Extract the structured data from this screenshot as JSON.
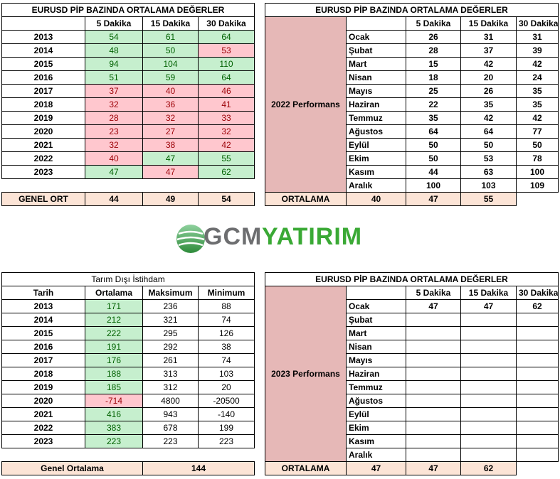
{
  "t1": {
    "title": "EURUSD  PİP BAZINDA ORTALAMA DEĞERLER",
    "headers": [
      "",
      "5 Dakika",
      "15 Dakika",
      "30 Dakika"
    ],
    "rows": [
      {
        "year": "2013",
        "v": [
          "54",
          "61",
          "64"
        ],
        "c": [
          "g",
          "g",
          "g"
        ]
      },
      {
        "year": "2014",
        "v": [
          "48",
          "50",
          "53"
        ],
        "c": [
          "g",
          "g",
          "r"
        ]
      },
      {
        "year": "2015",
        "v": [
          "94",
          "104",
          "110"
        ],
        "c": [
          "g",
          "g",
          "g"
        ]
      },
      {
        "year": "2016",
        "v": [
          "51",
          "59",
          "64"
        ],
        "c": [
          "g",
          "g",
          "g"
        ]
      },
      {
        "year": "2017",
        "v": [
          "37",
          "40",
          "46"
        ],
        "c": [
          "r",
          "r",
          "r"
        ]
      },
      {
        "year": "2018",
        "v": [
          "32",
          "36",
          "41"
        ],
        "c": [
          "r",
          "r",
          "r"
        ]
      },
      {
        "year": "2019",
        "v": [
          "28",
          "32",
          "33"
        ],
        "c": [
          "r",
          "r",
          "r"
        ]
      },
      {
        "year": "2020",
        "v": [
          "23",
          "27",
          "32"
        ],
        "c": [
          "r",
          "r",
          "r"
        ]
      },
      {
        "year": "2021",
        "v": [
          "32",
          "38",
          "42"
        ],
        "c": [
          "r",
          "r",
          "r"
        ]
      },
      {
        "year": "2022",
        "v": [
          "40",
          "47",
          "55"
        ],
        "c": [
          "r",
          "g",
          "g"
        ]
      },
      {
        "year": "2023",
        "v": [
          "47",
          "47",
          "62"
        ],
        "c": [
          "g",
          "r",
          "g"
        ]
      }
    ],
    "footer": {
      "label": "GENEL ORT",
      "v": [
        "44",
        "49",
        "54"
      ]
    }
  },
  "t2": {
    "title": "EURUSD  PİP BAZINDA ORTALAMA DEĞERLER",
    "headers": [
      "5 Dakika",
      "15 Dakika",
      "30 Dakika"
    ],
    "perf_label": "2022 Performans",
    "rows": [
      {
        "m": "Ocak",
        "v": [
          "26",
          "31",
          "31"
        ]
      },
      {
        "m": "Şubat",
        "v": [
          "28",
          "37",
          "39"
        ]
      },
      {
        "m": "Mart",
        "v": [
          "15",
          "42",
          "42"
        ]
      },
      {
        "m": "Nisan",
        "v": [
          "18",
          "20",
          "24"
        ]
      },
      {
        "m": "Mayıs",
        "v": [
          "25",
          "26",
          "35"
        ]
      },
      {
        "m": "Haziran",
        "v": [
          "22",
          "35",
          "35"
        ]
      },
      {
        "m": "Temmuz",
        "v": [
          "35",
          "42",
          "42"
        ]
      },
      {
        "m": "Ağustos",
        "v": [
          "64",
          "64",
          "77"
        ]
      },
      {
        "m": "Eylül",
        "v": [
          "50",
          "50",
          "50"
        ]
      },
      {
        "m": "Ekim",
        "v": [
          "50",
          "53",
          "78"
        ]
      },
      {
        "m": "Kasım",
        "v": [
          "44",
          "63",
          "100"
        ]
      },
      {
        "m": "Aralık",
        "v": [
          "100",
          "103",
          "109"
        ]
      }
    ],
    "footer": {
      "label": "ORTALAMA",
      "v": [
        "40",
        "47",
        "55"
      ]
    }
  },
  "logo": {
    "part1": "GCM",
    "part2": "YATIRIM"
  },
  "t3": {
    "title": "Tarım Dışı İstihdam",
    "headers": [
      "Tarih",
      "Ortalama",
      "Maksimum",
      "Minimum"
    ],
    "rows": [
      {
        "y": "2013",
        "avg": "171",
        "max": "236",
        "min": "88",
        "c": "g"
      },
      {
        "y": "2014",
        "avg": "212",
        "max": "321",
        "min": "74",
        "c": "g"
      },
      {
        "y": "2015",
        "avg": "222",
        "max": "295",
        "min": "126",
        "c": "g"
      },
      {
        "y": "2016",
        "avg": "191",
        "max": "292",
        "min": "38",
        "c": "g"
      },
      {
        "y": "2017",
        "avg": "176",
        "max": "261",
        "min": "74",
        "c": "g"
      },
      {
        "y": "2018",
        "avg": "188",
        "max": "313",
        "min": "103",
        "c": "g"
      },
      {
        "y": "2019",
        "avg": "185",
        "max": "312",
        "min": "20",
        "c": "g"
      },
      {
        "y": "2020",
        "avg": "-714",
        "max": "4800",
        "min": "-20500",
        "c": "r"
      },
      {
        "y": "2021",
        "avg": "416",
        "max": "943",
        "min": "-140",
        "c": "g"
      },
      {
        "y": "2022",
        "avg": "383",
        "max": "678",
        "min": "199",
        "c": "g"
      },
      {
        "y": "2023",
        "avg": "223",
        "max": "223",
        "min": "223",
        "c": "g"
      }
    ],
    "footer": {
      "label": "Genel Ortalama",
      "value": "144"
    }
  },
  "t4": {
    "title": "EURUSD  PİP BAZINDA ORTALAMA DEĞERLER",
    "headers": [
      "5 Dakika",
      "15 Dakika",
      "30 Dakika"
    ],
    "perf_label": "2023 Performans",
    "rows": [
      {
        "m": "Ocak",
        "v": [
          "47",
          "47",
          "62"
        ]
      },
      {
        "m": "Şubat",
        "v": [
          "",
          "",
          ""
        ]
      },
      {
        "m": "Mart",
        "v": [
          "",
          "",
          ""
        ]
      },
      {
        "m": "Nisan",
        "v": [
          "",
          "",
          ""
        ]
      },
      {
        "m": "Mayıs",
        "v": [
          "",
          "",
          ""
        ]
      },
      {
        "m": "Haziran",
        "v": [
          "",
          "",
          ""
        ]
      },
      {
        "m": "Temmuz",
        "v": [
          "",
          "",
          ""
        ]
      },
      {
        "m": "Ağustos",
        "v": [
          "",
          "",
          ""
        ]
      },
      {
        "m": "Eylül",
        "v": [
          "",
          "",
          ""
        ]
      },
      {
        "m": "Ekim",
        "v": [
          "",
          "",
          ""
        ]
      },
      {
        "m": "Kasım",
        "v": [
          "",
          "",
          ""
        ]
      },
      {
        "m": "Aralık",
        "v": [
          "",
          "",
          ""
        ]
      }
    ],
    "footer": {
      "label": "ORTALAMA",
      "v": [
        "47",
        "47",
        "62"
      ]
    }
  }
}
